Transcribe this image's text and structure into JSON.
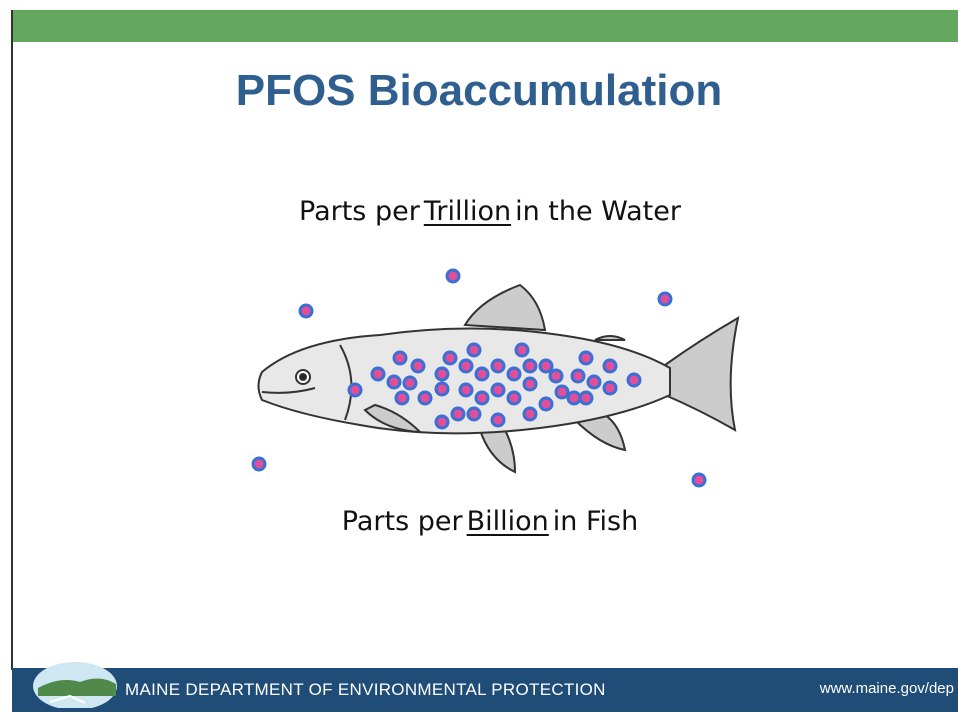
{
  "title": "PFOS Bioaccumulation",
  "water_caption": {
    "before": "Parts per",
    "underlined": "Trillion",
    "after": "in the Water"
  },
  "fish_caption": {
    "before": "Parts per",
    "underlined": "Billion",
    "after": "in Fish"
  },
  "footer": {
    "organization": "MAINE DEPARTMENT OF ENVIRONMENTAL PROTECTION",
    "url": "www.maine.gov/dep"
  }
}
